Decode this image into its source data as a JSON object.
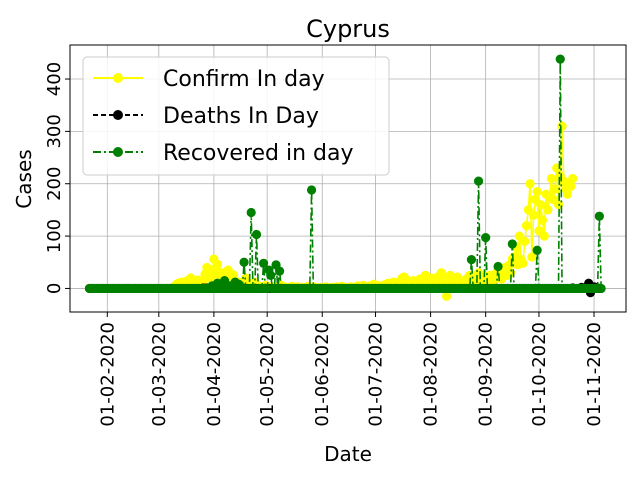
{
  "chart_data": {
    "type": "line",
    "title": "Cyprus",
    "xlabel": "Date",
    "ylabel": "Cases",
    "x_ticks": [
      "01-02-2020",
      "01-03-2020",
      "01-04-2020",
      "01-05-2020",
      "01-06-2020",
      "01-07-2020",
      "01-08-2020",
      "01-09-2020",
      "01-10-2020",
      "01-11-2020"
    ],
    "y_ticks": [
      0,
      100,
      200,
      300,
      400
    ],
    "xlim": [
      "2020-01-11",
      "2020-11-19"
    ],
    "ylim": [
      -45,
      465
    ],
    "grid": true,
    "legend_position": "top-left",
    "colors": {
      "confirm": "#ffff00",
      "deaths": "#000000",
      "recovered": "#008000"
    },
    "series": [
      {
        "name": "Confirm In day",
        "key": "confirm",
        "start": "2020-01-22",
        "values": [
          0,
          0,
          0,
          0,
          0,
          0,
          0,
          0,
          0,
          0,
          0,
          0,
          0,
          0,
          0,
          0,
          0,
          0,
          0,
          0,
          0,
          0,
          0,
          0,
          0,
          0,
          0,
          0,
          0,
          0,
          0,
          0,
          0,
          0,
          0,
          0,
          0,
          0,
          0,
          0,
          0,
          0,
          0,
          0,
          0,
          0,
          0,
          2,
          4,
          8,
          10,
          11,
          12,
          5,
          3,
          15,
          9,
          20,
          4,
          8,
          11,
          16,
          8,
          12,
          14,
          27,
          40,
          37,
          20,
          25,
          56,
          38,
          46,
          26,
          30,
          13,
          30,
          20,
          35,
          24,
          15,
          26,
          10,
          7,
          12,
          9,
          8,
          14,
          20,
          10,
          6,
          9,
          5,
          12,
          7,
          5,
          4,
          3,
          4,
          6,
          5,
          3,
          2,
          3,
          2,
          1,
          4,
          2,
          6,
          3,
          2,
          2,
          1,
          2,
          4,
          1,
          2,
          3,
          0,
          1,
          2,
          0,
          1,
          4,
          2,
          1,
          3,
          2,
          0,
          1,
          2,
          1,
          0,
          3,
          1,
          0,
          2,
          1,
          1,
          3,
          2,
          0,
          4,
          1,
          2,
          0,
          1,
          3,
          1,
          2,
          0,
          5,
          2,
          1,
          6,
          3,
          4,
          2,
          5,
          3,
          8,
          4,
          6,
          2,
          3,
          5,
          7,
          8,
          10,
          3,
          6,
          12,
          4,
          9,
          11,
          15,
          20,
          22,
          18,
          10,
          12,
          8,
          15,
          6,
          9,
          14,
          18,
          12,
          10,
          25,
          8,
          14,
          20,
          12,
          10,
          16,
          22,
          14,
          30,
          18,
          12,
          -15,
          20,
          25,
          16,
          10,
          8,
          22,
          12,
          14,
          9,
          6,
          18,
          10,
          25,
          15,
          20,
          12,
          8,
          30,
          16,
          14,
          10,
          22,
          18,
          25,
          12,
          20,
          16,
          30,
          22,
          28,
          18,
          35,
          40,
          25,
          44,
          30,
          56,
          60,
          80,
          45,
          100,
          55,
          48,
          90,
          120,
          150,
          200,
          60,
          140,
          170,
          185,
          110,
          160,
          130,
          100,
          180,
          150,
          175,
          210,
          170,
          190,
          230,
          160,
          215,
          310,
          205,
          190,
          180,
          200,
          195,
          210
        ],
        "mark_every": 1
      },
      {
        "name": "Deaths In Day",
        "key": "deaths",
        "start": "2020-01-22",
        "values": [
          0,
          0,
          0,
          0,
          0,
          0,
          0,
          0,
          0,
          0,
          0,
          0,
          0,
          0,
          0,
          0,
          0,
          0,
          0,
          0,
          0,
          0,
          0,
          0,
          0,
          0,
          0,
          0,
          0,
          0,
          0,
          0,
          0,
          0,
          0,
          0,
          0,
          0,
          0,
          0,
          0,
          0,
          0,
          0,
          0,
          0,
          0,
          0,
          0,
          0,
          0,
          0,
          0,
          0,
          0,
          0,
          0,
          0,
          0,
          0,
          0,
          0,
          0,
          0,
          1,
          0,
          1,
          0,
          1,
          0,
          2,
          1,
          0,
          1,
          0,
          2,
          0,
          1,
          0,
          0,
          1,
          0,
          1,
          0,
          0,
          0,
          1,
          0,
          0,
          0,
          0,
          0,
          0,
          0,
          0,
          0,
          0,
          0,
          0,
          0,
          0,
          0,
          0,
          0,
          0,
          0,
          0,
          0,
          0,
          0,
          0,
          0,
          0,
          0,
          0,
          0,
          0,
          0,
          0,
          0,
          0,
          0,
          0,
          0,
          0,
          0,
          0,
          0,
          0,
          0,
          0,
          0,
          0,
          0,
          0,
          0,
          0,
          0,
          0,
          0,
          0,
          0,
          0,
          0,
          0,
          0,
          0,
          0,
          0,
          0,
          0,
          0,
          0,
          0,
          0,
          0,
          0,
          0,
          0,
          0,
          0,
          0,
          0,
          0,
          0,
          0,
          0,
          0,
          0,
          0,
          0,
          0,
          0,
          0,
          0,
          0,
          0,
          0,
          0,
          0,
          0,
          0,
          0,
          0,
          0,
          0,
          0,
          0,
          0,
          0,
          0,
          0,
          0,
          0,
          0,
          0,
          0,
          0,
          0,
          0,
          0,
          0,
          0,
          0,
          0,
          0,
          0,
          0,
          0,
          0,
          0,
          0,
          0,
          0,
          0,
          0,
          0,
          0,
          0,
          0,
          0,
          0,
          0,
          0,
          0,
          0,
          0,
          0,
          0,
          0,
          0,
          0,
          0,
          0,
          0,
          0,
          0,
          0,
          0,
          0,
          0,
          0,
          0,
          0,
          0,
          0,
          0,
          0,
          0,
          0,
          0,
          0,
          0,
          0,
          0,
          0,
          0,
          0,
          0,
          0,
          0,
          0,
          0,
          0,
          0,
          0,
          0,
          0,
          0,
          0,
          0,
          0,
          1,
          0,
          0,
          0,
          0,
          2,
          0,
          1,
          0,
          10,
          -8,
          0,
          3,
          2,
          1,
          0
        ],
        "mark_every": 1
      },
      {
        "name": "Recovered in day",
        "key": "recovered",
        "start": "2020-01-22",
        "values": [
          0,
          0,
          0,
          0,
          0,
          0,
          0,
          0,
          0,
          0,
          0,
          0,
          0,
          0,
          0,
          0,
          0,
          0,
          0,
          0,
          0,
          0,
          0,
          0,
          0,
          0,
          0,
          0,
          0,
          0,
          0,
          0,
          0,
          0,
          0,
          0,
          0,
          0,
          0,
          0,
          0,
          0,
          0,
          0,
          0,
          0,
          0,
          0,
          0,
          0,
          0,
          0,
          0,
          0,
          0,
          0,
          0,
          0,
          0,
          0,
          0,
          0,
          0,
          0,
          0,
          0,
          0,
          0,
          0,
          5,
          0,
          0,
          10,
          0,
          0,
          0,
          15,
          0,
          0,
          5,
          0,
          0,
          12,
          0,
          8,
          0,
          0,
          50,
          0,
          0,
          0,
          145,
          0,
          0,
          103,
          0,
          0,
          0,
          48,
          0,
          0,
          35,
          25,
          0,
          0,
          45,
          0,
          33,
          0,
          0,
          0,
          0,
          0,
          0,
          0,
          0,
          0,
          0,
          0,
          0,
          0,
          0,
          0,
          0,
          0,
          188,
          0,
          0,
          0,
          0,
          0,
          0,
          0,
          0,
          0,
          0,
          0,
          0,
          0,
          0,
          0,
          0,
          0,
          0,
          0,
          0,
          0,
          0,
          0,
          0,
          0,
          0,
          0,
          0,
          0,
          0,
          0,
          0,
          0,
          0,
          0,
          0,
          0,
          0,
          0,
          0,
          0,
          0,
          0,
          0,
          0,
          0,
          0,
          0,
          0,
          0,
          0,
          0,
          0,
          0,
          0,
          0,
          0,
          0,
          0,
          0,
          0,
          0,
          0,
          0,
          0,
          0,
          0,
          0,
          0,
          0,
          0,
          0,
          0,
          0,
          0,
          0,
          0,
          0,
          0,
          0,
          0,
          0,
          0,
          0,
          0,
          0,
          0,
          0,
          0,
          55,
          0,
          0,
          0,
          205,
          0,
          0,
          0,
          97,
          0,
          0,
          0,
          0,
          0,
          0,
          42,
          0,
          0,
          0,
          0,
          0,
          0,
          0,
          85,
          0,
          0,
          0,
          0,
          0,
          0,
          0,
          0,
          0,
          0,
          0,
          0,
          0,
          73,
          0,
          0,
          0,
          0,
          0,
          0,
          0,
          0,
          0,
          0,
          0,
          0,
          438,
          0,
          0,
          0,
          0,
          0,
          0,
          0,
          0,
          0,
          0,
          0,
          0,
          0,
          0,
          0,
          0,
          0,
          0,
          0,
          0,
          0,
          138,
          0
        ],
        "mark_every": 1
      }
    ]
  }
}
